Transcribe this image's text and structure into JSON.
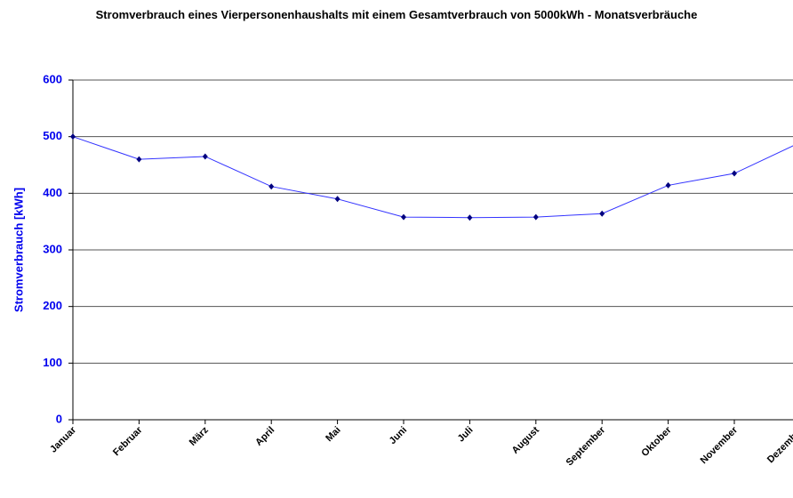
{
  "chart_data": {
    "type": "line",
    "title": "Stromverbrauch eines Vierpersonenhaushalts mit einem Gesamtverbrauch von 5000kWh - Monatsverbräuche",
    "ylabel": "Stromverbrauch [kWh]",
    "categories": [
      "Januar",
      "Februar",
      "März",
      "April",
      "Mai",
      "Juni",
      "Juli",
      "August",
      "September",
      "Oktober",
      "November",
      "Dezember"
    ],
    "series": [
      {
        "color": "#3333ff",
        "marker_color": "#000080",
        "values": [
          500,
          460,
          465,
          412,
          390,
          358,
          357,
          358,
          364,
          414,
          435,
          490
        ]
      }
    ],
    "ylim": [
      0,
      600
    ],
    "yticks": [
      0,
      100,
      200,
      300,
      400,
      500,
      600
    ],
    "grid": true
  }
}
